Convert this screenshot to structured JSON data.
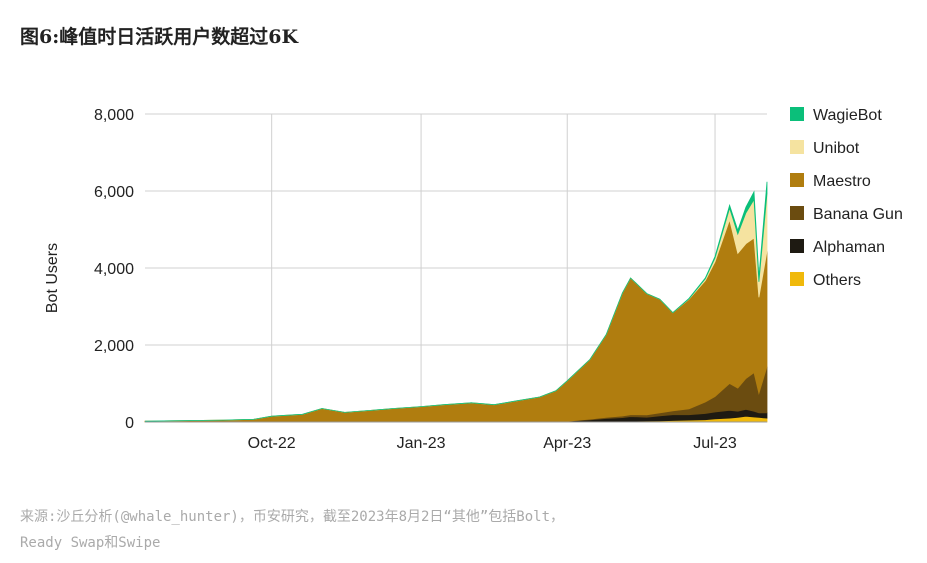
{
  "title": "图6:峰值时日活跃用户数超过6K",
  "source_line1": "来源:沙丘分析(@whale_hunter)，币安研究，截至2023年8月2日“其他”包括Bolt，",
  "source_line2": "Ready Swap和Swipe",
  "chart_data": {
    "type": "area",
    "stacked": true,
    "ylabel": "Bot Users",
    "ylim": [
      0,
      8000
    ],
    "yticks": [
      "0",
      "2,000",
      "4,000",
      "6,000",
      "8,000"
    ],
    "ytick_values": [
      0,
      2000,
      4000,
      6000,
      8000
    ],
    "xlim": [
      "2022-07-15",
      "2023-08-02"
    ],
    "xticks": [
      "Oct-22",
      "Jan-23",
      "Apr-23",
      "Jul-23"
    ],
    "xtick_dates": [
      "2022-10-01",
      "2023-01-01",
      "2023-04-01",
      "2023-07-01"
    ],
    "grid": true,
    "legend_position": "right",
    "x": [
      "2022-07-15",
      "2022-08-01",
      "2022-09-01",
      "2022-09-20",
      "2022-10-01",
      "2022-10-20",
      "2022-11-01",
      "2022-11-15",
      "2022-12-01",
      "2022-12-15",
      "2023-01-01",
      "2023-01-15",
      "2023-02-01",
      "2023-02-15",
      "2023-03-01",
      "2023-03-15",
      "2023-03-25",
      "2023-04-01",
      "2023-04-15",
      "2023-04-25",
      "2023-05-05",
      "2023-05-10",
      "2023-05-20",
      "2023-05-28",
      "2023-06-05",
      "2023-06-15",
      "2023-06-25",
      "2023-07-01",
      "2023-07-10",
      "2023-07-15",
      "2023-07-20",
      "2023-07-25",
      "2023-07-28",
      "2023-08-02"
    ],
    "series": [
      {
        "name": "Others",
        "color": "#f0b90b",
        "values": [
          0,
          0,
          0,
          0,
          0,
          0,
          0,
          0,
          0,
          0,
          0,
          0,
          0,
          0,
          0,
          0,
          0,
          0,
          5,
          10,
          15,
          20,
          25,
          30,
          40,
          50,
          60,
          80,
          100,
          120,
          150,
          130,
          120,
          100
        ]
      },
      {
        "name": "Alphaman",
        "color": "#1e1a12",
        "values": [
          0,
          0,
          0,
          0,
          0,
          0,
          0,
          0,
          0,
          0,
          0,
          0,
          0,
          0,
          0,
          0,
          10,
          20,
          50,
          80,
          100,
          120,
          100,
          130,
          150,
          140,
          160,
          180,
          200,
          160,
          180,
          150,
          120,
          140
        ]
      },
      {
        "name": "Banana Gun",
        "color": "#6b4c10",
        "values": [
          0,
          0,
          0,
          0,
          0,
          0,
          0,
          0,
          0,
          0,
          0,
          0,
          0,
          0,
          0,
          0,
          0,
          0,
          20,
          30,
          40,
          50,
          60,
          80,
          100,
          150,
          300,
          400,
          700,
          600,
          800,
          1000,
          500,
          1200
        ]
      },
      {
        "name": "Maestro",
        "color": "#b07d0f",
        "values": [
          20,
          30,
          50,
          70,
          150,
          200,
          350,
          250,
          300,
          350,
          400,
          450,
          500,
          450,
          550,
          650,
          800,
          1050,
          1550,
          2150,
          3200,
          3550,
          3150,
          2950,
          2550,
          2850,
          3150,
          3500,
          4250,
          3500,
          3500,
          3500,
          2500,
          3000
        ]
      },
      {
        "name": "Unibot",
        "color": "#f5e3a0",
        "values": [
          0,
          0,
          0,
          0,
          0,
          0,
          0,
          0,
          0,
          0,
          0,
          0,
          0,
          0,
          0,
          0,
          0,
          0,
          0,
          0,
          0,
          0,
          0,
          0,
          0,
          10,
          50,
          100,
          300,
          500,
          800,
          1000,
          400,
          1500
        ]
      },
      {
        "name": "WagieBot",
        "color": "#0bbf7a",
        "values": [
          0,
          0,
          0,
          0,
          0,
          0,
          0,
          0,
          0,
          0,
          0,
          0,
          0,
          0,
          0,
          0,
          0,
          0,
          0,
          0,
          0,
          0,
          0,
          0,
          0,
          10,
          20,
          40,
          80,
          100,
          150,
          200,
          120,
          300
        ]
      }
    ]
  }
}
